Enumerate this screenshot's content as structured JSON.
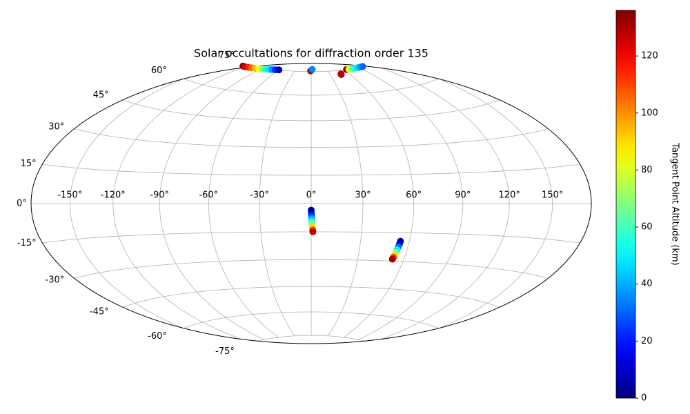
{
  "chart_data": {
    "type": "scatter",
    "projection": "hammer",
    "title": "Solar occultations for diffraction order 135",
    "x": [
      -125,
      -119,
      -113,
      -107,
      -101,
      -95,
      -89,
      -83,
      -77,
      -71,
      -65,
      -59,
      -1,
      2,
      47,
      47.5,
      65,
      70,
      75,
      80,
      85,
      90,
      95,
      100,
      0,
      0.1,
      0.2,
      0.3,
      0.4,
      0.5,
      0.7,
      0.9,
      1.0,
      54.5,
      54.3,
      54,
      53.7,
      53.4,
      53.1,
      52.8,
      52.5
    ],
    "y": [
      73,
      73,
      73.2,
      73.4,
      73.6,
      73.8,
      74,
      74.2,
      74.4,
      74.6,
      74.8,
      75,
      75.5,
      76.5,
      72.3,
      72.7,
      75,
      75,
      75,
      75,
      75,
      75,
      75,
      75,
      -3.5,
      -5,
      -6.5,
      -8,
      -9.5,
      -11,
      -12.5,
      -14,
      -15,
      -19.5,
      -21,
      -22.5,
      -24,
      -25.5,
      -27,
      -28,
      -29
    ],
    "c": [
      134,
      125,
      115,
      105,
      95,
      85,
      72,
      60,
      48,
      36,
      22,
      8,
      132,
      35,
      20,
      128,
      132,
      85,
      70,
      60,
      52,
      45,
      38,
      30,
      2,
      12,
      25,
      40,
      55,
      70,
      90,
      110,
      128,
      2,
      15,
      32,
      50,
      70,
      90,
      112,
      130
    ],
    "colormap": "jet",
    "clim": [
      0,
      136
    ],
    "cticks": [
      0,
      20,
      40,
      60,
      80,
      100,
      120
    ],
    "colorbar_label": "Tangent Point Altitude (km)",
    "xlim": [
      -180,
      180
    ],
    "ylim": [
      -90,
      90
    ],
    "xticks": [
      {
        "value": -150,
        "label": "-150°"
      },
      {
        "value": -120,
        "label": "-120°"
      },
      {
        "value": -90,
        "label": "-90°"
      },
      {
        "value": -60,
        "label": "-60°"
      },
      {
        "value": -30,
        "label": "-30°"
      },
      {
        "value": 0,
        "label": "0°"
      },
      {
        "value": 30,
        "label": "30°"
      },
      {
        "value": 60,
        "label": "60°"
      },
      {
        "value": 90,
        "label": "90°"
      },
      {
        "value": 120,
        "label": "120°"
      },
      {
        "value": 150,
        "label": "150°"
      }
    ],
    "yticks": [
      {
        "value": -75,
        "label": "-75°"
      },
      {
        "value": -60,
        "label": "-60°"
      },
      {
        "value": -45,
        "label": "-45°"
      },
      {
        "value": -30,
        "label": "-30°"
      },
      {
        "value": -15,
        "label": "-15°"
      },
      {
        "value": 0,
        "label": "0°"
      },
      {
        "value": 15,
        "label": "15°"
      },
      {
        "value": 30,
        "label": "30°"
      },
      {
        "value": 45,
        "label": "45°"
      },
      {
        "value": 60,
        "label": "60°"
      },
      {
        "value": 75,
        "label": "75°"
      }
    ],
    "grid": true
  }
}
